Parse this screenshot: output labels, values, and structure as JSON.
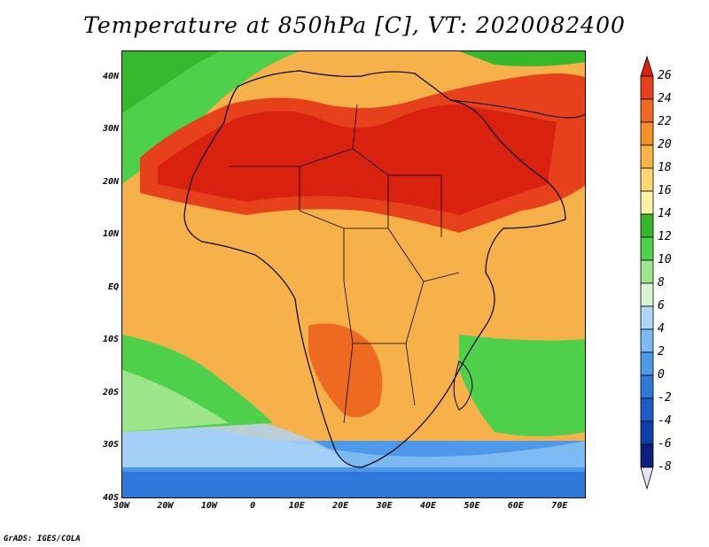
{
  "title": "Temperature at 850hPa [C], VT: 2020082400",
  "credit": "GrADS: IGES/COLA",
  "map": {
    "lat_labels": [
      "40N",
      "30N",
      "20N",
      "10N",
      "EQ",
      "10S",
      "20S",
      "30S",
      "40S"
    ],
    "lon_labels": [
      "30W",
      "20W",
      "10W",
      "0",
      "10E",
      "20E",
      "30E",
      "40E",
      "50E",
      "60E",
      "70E"
    ],
    "lat_range": [
      -40,
      45
    ],
    "lon_range": [
      -30,
      76
    ]
  },
  "colorbar": {
    "labels": [
      "26",
      "24",
      "22",
      "20",
      "18",
      "16",
      "14",
      "12",
      "10",
      "8",
      "6",
      "4",
      "2",
      "0",
      "-2",
      "-4",
      "-6",
      "-8"
    ],
    "colors": [
      "#d8210f",
      "#e6411a",
      "#ee6a20",
      "#f4912b",
      "#f9b445",
      "#fbd873",
      "#fdf2a4",
      "#35b82c",
      "#4fd04a",
      "#9de58a",
      "#d9f5d3",
      "#aed6f7",
      "#7ebaf2",
      "#4d98e8",
      "#2f78da",
      "#1c5bc8",
      "#0f3fad",
      "#0a1f7f"
    ]
  }
}
